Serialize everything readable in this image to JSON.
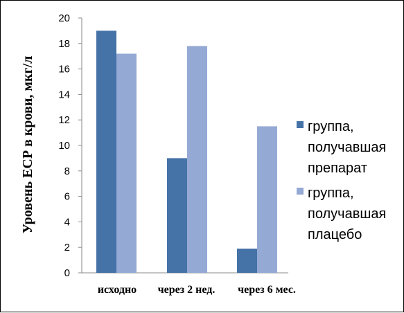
{
  "chart_data": {
    "type": "bar",
    "categories": [
      "исходно",
      "через 2 нед.",
      "через 6 мес."
    ],
    "series": [
      {
        "name": "группа, получавшая препарат",
        "legend_lines": [
          "группа,",
          "получавшая",
          "препарат"
        ],
        "values": [
          19,
          9,
          1.9
        ],
        "color": "#4572A7"
      },
      {
        "name": "группа, получавшая плацебо",
        "legend_lines": [
          "группа,",
          "получавшая",
          "плацебо"
        ],
        "values": [
          17.2,
          17.8,
          11.5
        ],
        "color": "#95A9D5"
      }
    ],
    "ylabel": "Уровень ЕСР в крови, мкг/л",
    "xlabel": "",
    "ylim": [
      0,
      20
    ],
    "yticks": [
      0,
      2,
      4,
      6,
      8,
      10,
      12,
      14,
      16,
      18,
      20
    ],
    "grid": false,
    "legend_position": "right"
  }
}
